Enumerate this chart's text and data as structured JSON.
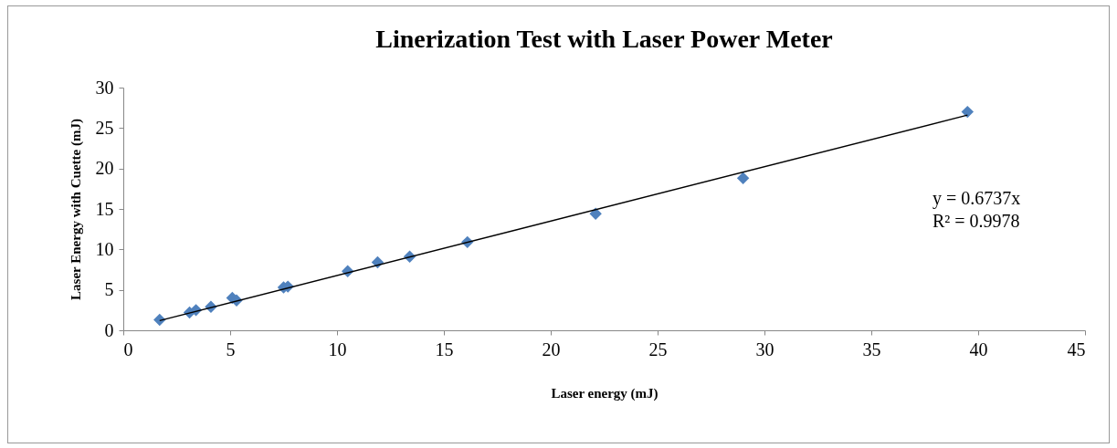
{
  "chart_data": {
    "type": "scatter",
    "title": "Linerization Test with Laser Power Meter",
    "xlabel": "Laser energy (mJ)",
    "ylabel": "Laser Energy with Cuette (mJ)",
    "xlim": [
      0,
      45
    ],
    "xticks": [
      0,
      5,
      10,
      15,
      20,
      25,
      30,
      35,
      40,
      45
    ],
    "ylim": [
      0,
      30
    ],
    "yticks": [
      0,
      5,
      10,
      15,
      20,
      25,
      30
    ],
    "grid": false,
    "marker": "diamond",
    "series": [
      {
        "color": "#4f81bd",
        "x": [
          1.7,
          3.1,
          3.4,
          4.1,
          5.1,
          5.3,
          7.5,
          7.7,
          10.5,
          11.9,
          13.4,
          16.1,
          22.1,
          29.0,
          39.5
        ],
        "values": [
          1.3,
          2.2,
          2.5,
          2.9,
          4.0,
          3.7,
          5.3,
          5.4,
          7.3,
          8.4,
          9.1,
          10.9,
          14.4,
          18.8,
          27.0
        ]
      },
      {
        "type": "line",
        "color": "#000000",
        "line_style": "solid",
        "marker": "none",
        "x": [
          1.7,
          39.5
        ],
        "values": [
          1.2,
          26.6
        ]
      }
    ],
    "annotations": [
      "y = 0.6737x",
      "R² = 0.9978"
    ]
  }
}
